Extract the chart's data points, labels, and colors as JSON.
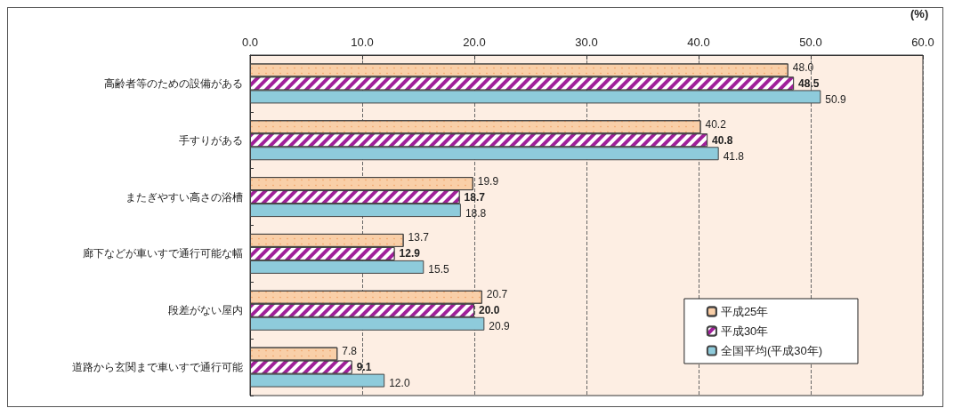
{
  "chart_data": {
    "type": "bar",
    "orientation": "horizontal",
    "xlabel": "(%)",
    "categories": [
      "高齢者等のための設備がある",
      "手すりがある",
      "またぎやすい高さの浴槽",
      "廊下などが車いすで通行可能な幅",
      "段差がない屋内",
      "道路から玄関まで車いすで通行可能"
    ],
    "series": [
      {
        "name": "平成25年",
        "color": "#f9cfa8",
        "values": [
          48.0,
          40.2,
          19.9,
          13.7,
          20.7,
          7.8
        ],
        "value_labels": [
          "48.0",
          "40.2",
          "19.9",
          "13.7",
          "20.7",
          "7.8"
        ]
      },
      {
        "name": "平成30年",
        "color": "#a0209a",
        "values": [
          48.5,
          40.8,
          18.7,
          12.9,
          20.0,
          9.1
        ],
        "value_labels": [
          "48.5",
          "40.8",
          "18.7",
          "12.9",
          "20.0",
          "9.1"
        ]
      },
      {
        "name": "全国平均(平成30年)",
        "color": "#8ecbdb",
        "values": [
          50.9,
          41.8,
          18.8,
          15.5,
          20.9,
          12.0
        ],
        "value_labels": [
          "50.9",
          "41.8",
          "18.8",
          "15.5",
          "20.9",
          "12.0"
        ]
      }
    ],
    "xlim": [
      0,
      60
    ],
    "xticks": [
      {
        "value": 0,
        "label": "0.0"
      },
      {
        "value": 10,
        "label": "10.0"
      },
      {
        "value": 20,
        "label": "20.0"
      },
      {
        "value": 30,
        "label": "30.0"
      },
      {
        "value": 40,
        "label": "40.0"
      },
      {
        "value": 50,
        "label": "50.0"
      },
      {
        "value": 60,
        "label": "60.0"
      }
    ],
    "grid": "x",
    "legend": "bottom right"
  }
}
